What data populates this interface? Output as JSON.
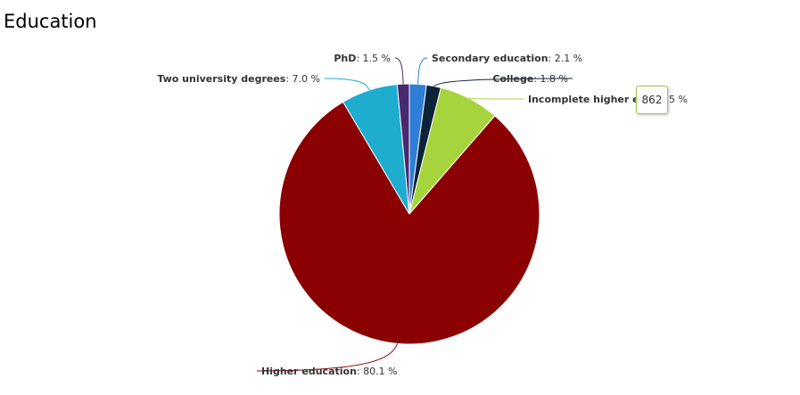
{
  "title": "Education",
  "tooltip": {
    "value": "862",
    "color": "#9bc94a"
  },
  "chart_data": {
    "type": "pie",
    "title": "Education",
    "unit": "%",
    "slices": [
      {
        "name": "Secondary education",
        "value": 2.1,
        "label": "Secondary education",
        "value_text": ": 2.1 %",
        "color": "#2f7ed8"
      },
      {
        "name": "College",
        "value": 1.8,
        "label": "College",
        "value_text": ": 1.8 %",
        "color": "#0d233a"
      },
      {
        "name": "Incomplete higher education",
        "value": 7.5,
        "label": "Incomplete higher edu",
        "value_text": ": 7.5 %",
        "color": "#a6d43c"
      },
      {
        "name": "Higher education",
        "value": 80.1,
        "label": "Higher education",
        "value_text": ": 80.1 %",
        "color": "#8b0000"
      },
      {
        "name": "Two university degrees",
        "value": 7.0,
        "label": "Two university degrees",
        "value_text": ": 7.0 %",
        "color": "#1eaccf"
      },
      {
        "name": "PhD",
        "value": 1.5,
        "label": "PhD",
        "value_text": ": 1.5 %",
        "color": "#492970"
      }
    ]
  }
}
